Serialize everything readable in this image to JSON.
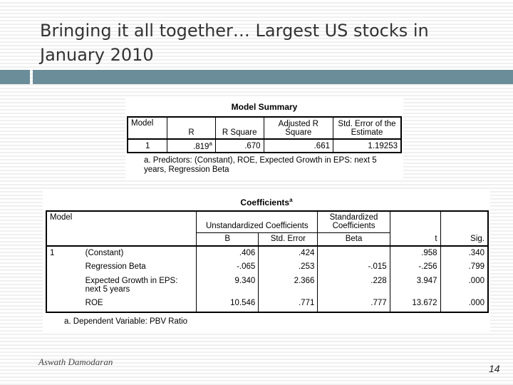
{
  "slide": {
    "title": "Bringing it all together… Largest US stocks in January 2010",
    "author": "Aswath Damodaran",
    "page_number": "14",
    "accent_color": "#6a8d99"
  },
  "model_summary": {
    "title": "Model Summary",
    "headers": {
      "model": "Model",
      "r": "R",
      "r_square": "R Square",
      "adj_r_square": "Adjusted R Square",
      "std_error": "Std. Error of the Estimate"
    },
    "row": {
      "model": "1",
      "r": ".819",
      "r_superscript": "a",
      "r_square": ".670",
      "adj_r_square": ".661",
      "std_error": "1.19253"
    },
    "footnote": "a. Predictors: (Constant), ROE, Expected Growth in EPS: next 5 years, Regression Beta"
  },
  "coefficients": {
    "title": "Coefficients",
    "title_superscript": "a",
    "headers": {
      "model": "Model",
      "unstandardized": "Unstandardized Coefficients",
      "standardized": "Standardized Coefficients",
      "t": "t",
      "sig": "Sig.",
      "b": "B",
      "std_error": "Std. Error",
      "beta": "Beta"
    },
    "model_number": "1",
    "rows": [
      {
        "name": "(Constant)",
        "b": ".406",
        "se": ".424",
        "beta": "",
        "t": ".958",
        "sig": ".340"
      },
      {
        "name": "Regression Beta",
        "b": "-.065",
        "se": ".253",
        "beta": "-.015",
        "t": "-.256",
        "sig": ".799"
      },
      {
        "name": "Expected Growth in EPS: next 5 years",
        "b": "9.340",
        "se": "2.366",
        "beta": ".228",
        "t": "3.947",
        "sig": ".000"
      },
      {
        "name": "ROE",
        "b": "10.546",
        "se": ".771",
        "beta": ".777",
        "t": "13.672",
        "sig": ".000"
      }
    ],
    "footnote": "a. Dependent Variable: PBV Ratio"
  }
}
